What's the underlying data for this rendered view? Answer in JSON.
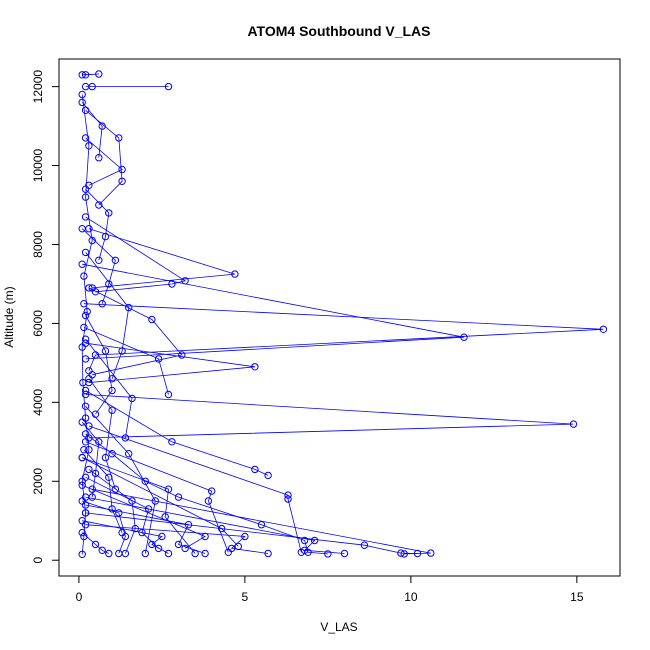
{
  "chart_data": {
    "type": "line",
    "title": "ATOM4 Southbound V_LAS",
    "xlabel": "V_LAS",
    "ylabel": "Altitude (m)",
    "xlim": [
      -0.6,
      16.3
    ],
    "ylim": [
      -400,
      12700
    ],
    "xticks": [
      0,
      5,
      10,
      15
    ],
    "yticks": [
      0,
      2000,
      4000,
      6000,
      8000,
      10000,
      12000
    ],
    "grid": false,
    "marker": "open-circle",
    "series_color": "#0000ff",
    "series": [
      {
        "x": [
          0.1,
          0.15,
          0.2,
          0.1,
          0.3,
          0.2,
          0.12,
          0.1,
          0.25,
          0.15,
          0.4,
          0.2,
          0.3,
          0.1
        ],
        "y": [
          150,
          600,
          1200,
          2000,
          2800,
          3600,
          4500,
          5400,
          6300,
          7200,
          8100,
          9200,
          10500,
          11800
        ]
      },
      {
        "x": [
          0.2,
          1.0,
          2.0,
          3.0,
          5.5,
          6.8,
          6.9,
          7.5
        ],
        "y": [
          3200,
          2700,
          2000,
          1600,
          900,
          500,
          200,
          160
        ]
      },
      {
        "x": [
          0.15,
          15.8,
          0.5,
          0.3
        ],
        "y": [
          6500,
          5850,
          5200,
          4800
        ]
      },
      {
        "x": [
          0.2,
          14.9,
          0.3
        ],
        "y": [
          4200,
          3450,
          3100
        ]
      },
      {
        "x": [
          0.1,
          11.6,
          0.2
        ],
        "y": [
          7500,
          5650,
          5100
        ]
      },
      {
        "x": [
          0.3,
          4.7,
          0.4
        ],
        "y": [
          8400,
          7250,
          6900
        ]
      },
      {
        "x": [
          0.2,
          5.3,
          0.3
        ],
        "y": [
          5500,
          4900,
          4500
        ]
      },
      {
        "x": [
          0.4,
          10.6,
          9.8
        ],
        "y": [
          1800,
          180,
          160
        ]
      },
      {
        "x": [
          0.2,
          8.6,
          9.7,
          10.2
        ],
        "y": [
          1200,
          380,
          180,
          170
        ]
      },
      {
        "x": [
          0.2,
          3.2,
          2.8,
          0.5
        ],
        "y": [
          8700,
          7080,
          7000,
          6800
        ]
      },
      {
        "x": [
          0.4,
          2.7,
          0.2
        ],
        "y": [
          12000,
          12000,
          12000
        ]
      },
      {
        "x": [
          0.1,
          0.6,
          0.2
        ],
        "y": [
          12300,
          12320,
          12300
        ]
      },
      {
        "x": [
          0.2,
          1.3,
          0.3
        ],
        "y": [
          10700,
          9900,
          9500
        ]
      },
      {
        "x": [
          0.3,
          2.2,
          3.1,
          0.4
        ],
        "y": [
          6900,
          6100,
          5200,
          4700
        ]
      },
      {
        "x": [
          0.2,
          2.8,
          5.3,
          5.7
        ],
        "y": [
          4300,
          3000,
          2300,
          2150
        ]
      },
      {
        "x": [
          0.3,
          6.3,
          6.3,
          6.7
        ],
        "y": [
          3400,
          1650,
          1550,
          200
        ]
      },
      {
        "x": [
          0.2,
          4.0,
          3.9,
          4.5
        ],
        "y": [
          3000,
          1750,
          1500,
          200
        ]
      },
      {
        "x": [
          0.1,
          2.7,
          2.6,
          3.5
        ],
        "y": [
          2600,
          1800,
          1100,
          170
        ]
      },
      {
        "x": [
          0.2,
          1.5,
          2.3,
          2.0
        ],
        "y": [
          3900,
          2700,
          1500,
          170
        ]
      },
      {
        "x": [
          0.1,
          1.2,
          1.4,
          1.2
        ],
        "y": [
          1500,
          1200,
          600,
          170
        ]
      },
      {
        "x": [
          0.3,
          1.6,
          1.7,
          1.4
        ],
        "y": [
          2300,
          1500,
          800,
          170
        ]
      },
      {
        "x": [
          0.2,
          3.3,
          3.0,
          3.8
        ],
        "y": [
          1400,
          900,
          400,
          170
        ]
      },
      {
        "x": [
          0.1,
          2.5,
          2.2,
          2.7
        ],
        "y": [
          1000,
          600,
          400,
          170
        ]
      },
      {
        "x": [
          0.2,
          5.0,
          4.6,
          5.7
        ],
        "y": [
          900,
          600,
          300,
          170
        ]
      },
      {
        "x": [
          0.1,
          0.5,
          0.7,
          0.9
        ],
        "y": [
          700,
          400,
          250,
          170
        ]
      },
      {
        "x": [
          0.3,
          1.0,
          0.8,
          1.1
        ],
        "y": [
          4600,
          3800,
          2600,
          1800
        ]
      },
      {
        "x": [
          0.2,
          0.9,
          0.8,
          0.6
        ],
        "y": [
          9400,
          8800,
          8200,
          7600
        ]
      },
      {
        "x": [
          0.1,
          1.1,
          0.9,
          0.7
        ],
        "y": [
          8400,
          7600,
          7000,
          6500
        ]
      },
      {
        "x": [
          0.2,
          1.2,
          1.3,
          0.6
        ],
        "y": [
          11400,
          10700,
          9600,
          9000
        ]
      },
      {
        "x": [
          0.1,
          0.7,
          0.6
        ],
        "y": [
          11600,
          11000,
          10200
        ]
      },
      {
        "x": [
          0.2,
          1.6,
          1.4
        ],
        "y": [
          5600,
          4100,
          3100
        ]
      },
      {
        "x": [
          0.15,
          2.4,
          2.7
        ],
        "y": [
          5900,
          5100,
          4200
        ]
      },
      {
        "x": [
          0.2,
          0.8,
          1.0,
          0.5
        ],
        "y": [
          6200,
          5300,
          4300,
          3700
        ]
      },
      {
        "x": [
          0.2,
          1.5,
          1.3,
          1.0
        ],
        "y": [
          7800,
          6400,
          5300,
          4600
        ]
      },
      {
        "x": [
          0.1,
          0.6,
          0.5,
          0.4
        ],
        "y": [
          3500,
          3000,
          2200,
          1600
        ]
      },
      {
        "x": [
          0.15,
          0.9,
          1.0,
          1.3
        ],
        "y": [
          2800,
          2100,
          1300,
          700
        ]
      },
      {
        "x": [
          0.2,
          2.1,
          1.9,
          2.4
        ],
        "y": [
          2100,
          1300,
          700,
          300
        ]
      },
      {
        "x": [
          0.1,
          3.8,
          3.2
        ],
        "y": [
          1900,
          600,
          300
        ]
      },
      {
        "x": [
          0.2,
          7.1,
          6.8,
          8.0
        ],
        "y": [
          1600,
          500,
          250,
          170
        ]
      },
      {
        "x": [
          0.1,
          4.3,
          4.8
        ],
        "y": [
          2600,
          800,
          350
        ]
      }
    ]
  }
}
